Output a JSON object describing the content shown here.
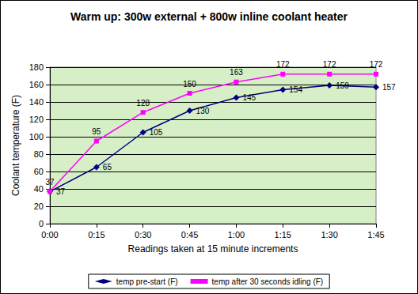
{
  "chart_data": {
    "type": "line",
    "title": "Warm up: 300w external + 800w inline coolant heater",
    "x_label": "Readings taken at 15 minute increments",
    "y_label": "Coolant temperature (F)",
    "categories": [
      "0:00",
      "0:15",
      "0:30",
      "0:45",
      "1:00",
      "1:15",
      "1:30",
      "1:45"
    ],
    "series": [
      {
        "name": "temp pre-start (F)",
        "color": "#000080",
        "marker": "diamond",
        "line_style": "solid",
        "values": [
          37,
          65,
          105,
          130,
          145,
          154,
          159,
          157
        ]
      },
      {
        "name": "temp after 30 seconds idling (F)",
        "color": "#ff00ff",
        "marker": "square",
        "line_style": "solid",
        "values": [
          37,
          95,
          128,
          150,
          163,
          172,
          172,
          172
        ]
      }
    ],
    "ylim": [
      0,
      180
    ],
    "yticks": [
      0,
      20,
      40,
      60,
      80,
      100,
      120,
      140,
      160,
      180
    ],
    "grid": true,
    "legend": "bottom",
    "data_labels": true
  }
}
